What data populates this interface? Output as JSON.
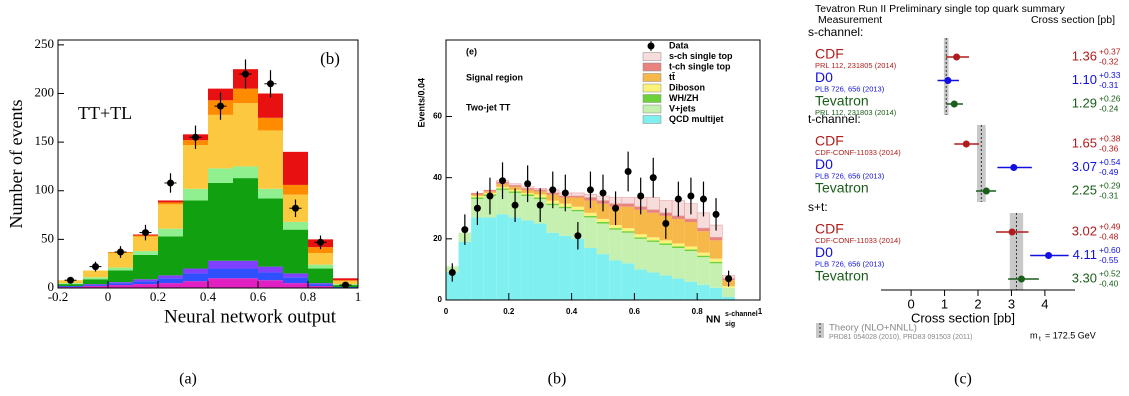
{
  "chart_data": [
    {
      "type": "histogram",
      "caption": "(a)",
      "panel_label": "(b)",
      "annotation": "TT+TL",
      "y_label": "Number of events",
      "x_label": "Neural network output",
      "bins": [
        -0.2,
        -0.1,
        0,
        0.1,
        0.2,
        0.3,
        0.4,
        0.5,
        0.6,
        0.7,
        0.8,
        0.9,
        1.0
      ],
      "xlim": [
        -0.2,
        1
      ],
      "xticks": [
        -0.2,
        0,
        0.2,
        0.4,
        0.6,
        0.8,
        1
      ],
      "ylim": [
        0,
        255
      ],
      "yticks": [
        0,
        50,
        100,
        150,
        200,
        250
      ],
      "series": [
        {
          "color": "#e020c0",
          "values": [
            1,
            2,
            3,
            4,
            5,
            7,
            10,
            10,
            8,
            5,
            2,
            0
          ]
        },
        {
          "color": "#3050ff",
          "values": [
            1,
            1,
            2,
            3,
            5,
            8,
            10,
            10,
            8,
            6,
            2,
            1
          ]
        },
        {
          "color": "#8040ff",
          "values": [
            0,
            1,
            1,
            2,
            3,
            5,
            8,
            8,
            6,
            4,
            1,
            0
          ]
        },
        {
          "color": "#10a010",
          "values": [
            2,
            5,
            12,
            25,
            40,
            70,
            80,
            85,
            70,
            45,
            15,
            2
          ]
        },
        {
          "color": "#90f090",
          "values": [
            1,
            2,
            3,
            4,
            8,
            12,
            15,
            12,
            10,
            8,
            4,
            1
          ]
        },
        {
          "color": "#fcc840",
          "values": [
            3,
            7,
            15,
            15,
            25,
            45,
            55,
            65,
            60,
            28,
            12,
            3
          ]
        },
        {
          "color": "#ff8c00",
          "values": [
            0,
            0,
            1,
            1,
            2,
            5,
            15,
            15,
            13,
            10,
            6,
            1
          ]
        },
        {
          "color": "#e81010",
          "values": [
            0,
            0,
            0,
            1,
            2,
            6,
            12,
            20,
            25,
            34,
            8,
            2
          ]
        }
      ],
      "points": {
        "values": [
          8,
          22,
          37,
          57,
          108,
          155,
          187,
          220,
          210,
          82,
          47,
          3
        ],
        "errors": [
          3,
          5,
          6,
          8,
          10,
          12,
          14,
          15,
          14,
          9,
          7,
          2
        ]
      }
    },
    {
      "type": "histogram",
      "caption": "(b)",
      "panel_label": "(e)",
      "annotations": [
        "Signal region",
        "Two-jet TT"
      ],
      "y_label": "Events/0.04",
      "x_label": "NN",
      "x_label_sup": "s-channel",
      "x_label_sub": "sig",
      "bins": [
        0,
        0.04,
        0.08,
        0.12,
        0.16,
        0.2,
        0.24,
        0.28,
        0.32,
        0.36,
        0.4,
        0.44,
        0.48,
        0.52,
        0.56,
        0.6,
        0.64,
        0.68,
        0.72,
        0.76,
        0.8,
        0.84,
        0.88,
        0.92
      ],
      "xlim": [
        0,
        1
      ],
      "xticks": [
        0,
        0.2,
        0.4,
        0.6,
        0.8,
        1
      ],
      "ylim": [
        0,
        85
      ],
      "yticks": [
        0,
        20,
        40,
        60
      ],
      "series": [
        {
          "name": "QCD multijet",
          "color": "#7ff0ef",
          "values": [
            9,
            19,
            27,
            27,
            28,
            27,
            26,
            25,
            22,
            21,
            20,
            17,
            15,
            13,
            12,
            10,
            9,
            8,
            7,
            6,
            5,
            4,
            1
          ]
        },
        {
          "name": "V+jets",
          "color": "#c6f0b0",
          "values": [
            2,
            3,
            6,
            7,
            8,
            8,
            8,
            8,
            9,
            9,
            9,
            10,
            10,
            10,
            10,
            10,
            10,
            10,
            10,
            10,
            9,
            8,
            3
          ]
        },
        {
          "name": "WH/ZH",
          "color": "#6dd23a",
          "values": [
            0,
            0,
            0.5,
            0.5,
            0.5,
            0.5,
            0.5,
            0.5,
            0.5,
            0.5,
            0.5,
            0.5,
            0.5,
            0.5,
            0.5,
            0.5,
            0.5,
            0.5,
            0.5,
            0.5,
            0.5,
            0.5,
            0
          ]
        },
        {
          "name": "Diboson",
          "color": "#fbf27a",
          "values": [
            0,
            0,
            0.5,
            0.5,
            0.5,
            0.5,
            0.5,
            1,
            1,
            1,
            1,
            1,
            1,
            1,
            1,
            1,
            1,
            1,
            1,
            1,
            1,
            1,
            0.5
          ]
        },
        {
          "name": "tt̄",
          "color": "#f7b84a",
          "values": [
            0,
            0,
            0.5,
            0.5,
            1,
            1,
            1,
            1,
            2,
            2,
            3,
            4,
            5,
            6,
            7,
            8,
            8,
            8,
            8,
            8,
            7,
            6,
            2
          ]
        },
        {
          "name": "t-ch single top",
          "color": "#e9837f",
          "values": [
            0,
            0,
            0.5,
            0.5,
            0.5,
            0.5,
            0.5,
            0.5,
            0.5,
            0.5,
            0.5,
            1,
            1,
            1,
            1,
            1,
            1,
            1,
            1,
            1,
            1,
            1,
            0.5
          ]
        },
        {
          "name": "s-ch single top",
          "color": "#f7dcdc",
          "values": [
            0,
            0,
            0,
            0,
            0.5,
            0.5,
            0.5,
            0.5,
            1,
            1,
            1,
            1,
            1.5,
            2,
            2,
            3,
            4,
            4,
            5,
            5,
            5,
            4,
            1
          ]
        }
      ],
      "points": {
        "name": "Data",
        "values": [
          9,
          23,
          30,
          34,
          39,
          31,
          38,
          31,
          36,
          35,
          21,
          36,
          35,
          30,
          42,
          34,
          40,
          25,
          33,
          34,
          33,
          28,
          7
        ],
        "errors": [
          3,
          5,
          5.5,
          6,
          6,
          5.5,
          6,
          5.5,
          6,
          6,
          4.5,
          6,
          6,
          5.5,
          6.5,
          6,
          6.5,
          5,
          5.7,
          6,
          5.7,
          5.3,
          2.6
        ]
      }
    },
    {
      "type": "forest",
      "caption": "(c)",
      "title": "Tevatron Run II Preliminary single top quark summary",
      "column_headers": [
        "Measurement",
        "Cross section [pb]"
      ],
      "x_label": "Cross section [pb]",
      "xlim": [
        -0.9,
        4.9
      ],
      "xticks": [
        0,
        1,
        2,
        3,
        4
      ],
      "theory_label": "Theory (NLO+NNLL)",
      "theory_reference": "PRD81 054028 (2010), PRD83 091503 (2011)",
      "mass_symbol": "m",
      "mass_subscript": "t",
      "mass_text": "= 172.5 GeV",
      "groups": [
        {
          "name": "s-channel:",
          "theory": {
            "value": 1.05,
            "error": 0.07
          },
          "entries": [
            {
              "name": "CDF",
              "reference": "PRL 112, 231805 (2014)",
              "color": "#b01c1c",
              "value": 1.36,
              "error_plus": 0.37,
              "error_minus": 0.32,
              "error_labels": [
                "+0.37",
                "-0.32"
              ]
            },
            {
              "name": "D0",
              "reference": "PLB 726, 656 (2013)",
              "color": "#1010e0",
              "value": 1.1,
              "value_label": "1.10",
              "error_plus": 0.33,
              "error_minus": 0.31,
              "error_labels": [
                "+0.33",
                "-0.31"
              ]
            },
            {
              "name": "Tevatron",
              "reference": "PRL 112, 231803 (2014)",
              "color": "#1a5e1a",
              "value": 1.29,
              "error_plus": 0.26,
              "error_minus": 0.24,
              "error_labels": [
                "+0.26",
                "-0.24"
              ]
            }
          ]
        },
        {
          "name": "t-channel:",
          "theory": {
            "value": 2.1,
            "error": 0.13
          },
          "entries": [
            {
              "name": "CDF",
              "reference": "CDF-CONF-11033 (2014)",
              "color": "#b01c1c",
              "value": 1.65,
              "error_plus": 0.38,
              "error_minus": 0.36,
              "error_labels": [
                "+0.38",
                "-0.36"
              ]
            },
            {
              "name": "D0",
              "reference": "PLB 726, 656 (2013)",
              "color": "#1010e0",
              "value": 3.07,
              "error_plus": 0.54,
              "error_minus": 0.49,
              "error_labels": [
                "+0.54",
                "-0.49"
              ]
            },
            {
              "name": "Tevatron",
              "color": "#1a5e1a",
              "value": 2.25,
              "error_plus": 0.29,
              "error_minus": 0.31,
              "error_labels": [
                "+0.29",
                "-0.31"
              ]
            }
          ]
        },
        {
          "name": "s+t:",
          "theory": {
            "value": 3.15,
            "error": 0.2
          },
          "entries": [
            {
              "name": "CDF",
              "reference": "CDF-CONF-11033 (2014)",
              "color": "#b01c1c",
              "value": 3.02,
              "error_plus": 0.49,
              "error_minus": 0.48,
              "error_labels": [
                "+0.49",
                "-0.48"
              ]
            },
            {
              "name": "D0",
              "reference": "PLB 726, 656 (2013)",
              "color": "#1010e0",
              "value": 4.11,
              "error_plus": 0.6,
              "error_minus": 0.55,
              "error_labels": [
                "+0.60",
                "-0.55"
              ]
            },
            {
              "name": "Tevatron",
              "color": "#1a5e1a",
              "value": 3.3,
              "value_label": "3.30",
              "error_plus": 0.52,
              "error_minus": 0.4,
              "error_labels": [
                "+0.52",
                "-0.40"
              ]
            }
          ]
        }
      ]
    }
  ]
}
